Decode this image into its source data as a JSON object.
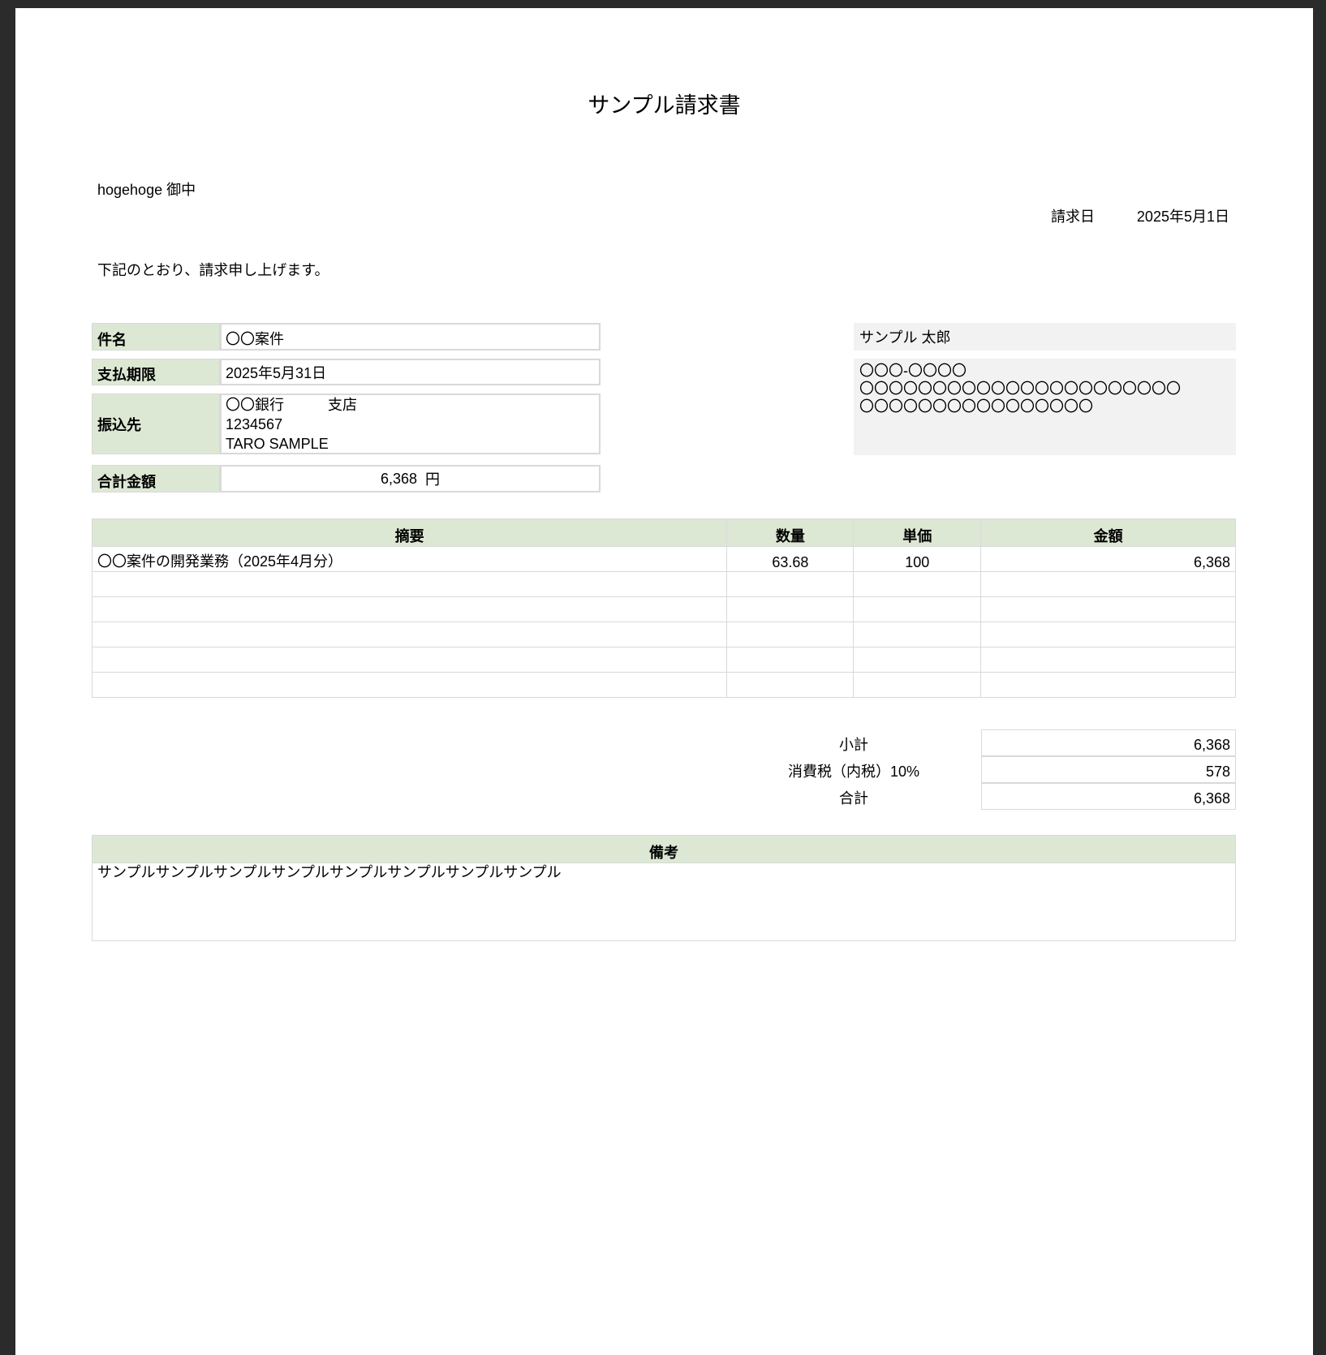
{
  "title": "サンプル請求書",
  "recipient": "hogehoge 御中",
  "invoice_date_label": "請求日",
  "invoice_date": "2025年5月1日",
  "intro": "下記のとおり、請求申し上げます。",
  "info": {
    "subject_label": "件名",
    "subject": "〇〇案件",
    "due_label": "支払期限",
    "due": "2025年5月31日",
    "bank_label": "振込先",
    "bank_lines": [
      "〇〇銀行　　　支店",
      "1234567",
      "TARO SAMPLE"
    ],
    "total_label": "合計金額",
    "total": "6,368",
    "total_unit": "円"
  },
  "issuer": {
    "name": "サンプル 太郎",
    "address_lines": [
      "〇〇〇-〇〇〇〇",
      "〇〇〇〇〇〇〇〇〇〇〇〇〇〇〇〇〇〇〇〇〇〇",
      "〇〇〇〇〇〇〇〇〇〇〇〇〇〇〇〇"
    ]
  },
  "items": {
    "headers": [
      "摘要",
      "数量",
      "単価",
      "金額"
    ],
    "rows": [
      [
        "〇〇案件の開発業務（2025年4月分）",
        "63.68",
        "100",
        "6,368"
      ],
      [
        "",
        "",
        "",
        ""
      ],
      [
        "",
        "",
        "",
        ""
      ],
      [
        "",
        "",
        "",
        ""
      ],
      [
        "",
        "",
        "",
        ""
      ],
      [
        "",
        "",
        "",
        ""
      ]
    ]
  },
  "totals": [
    {
      "label": "小計",
      "value": "6,368"
    },
    {
      "label": "消費税（内税）10%",
      "value": "578"
    },
    {
      "label": "合計",
      "value": "6,368"
    }
  ],
  "remarks": {
    "label": "備考",
    "text": "サンプルサンプルサンプルサンプルサンプルサンプルサンプルサンプル"
  },
  "colors": {
    "header_green": "#dde8d4",
    "issuer_grey": "#f2f2f2",
    "border": "#d9d9d9"
  }
}
